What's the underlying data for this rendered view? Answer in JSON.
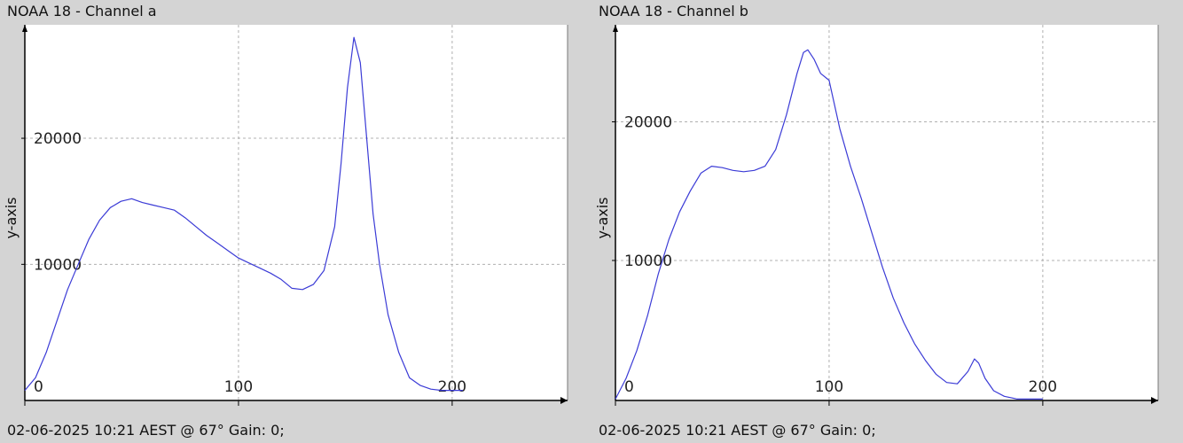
{
  "chart_data": [
    {
      "type": "line",
      "title": "NOAA 18 - Channel a",
      "ylabel": "y-axis",
      "xlabel": "",
      "caption": "02-06-2025 10:21 AEST @ 67° Gain: 0;",
      "xlim": [
        0,
        254
      ],
      "ylim": [
        -800,
        29000
      ],
      "grid": true,
      "x_ticks": [
        0,
        100,
        200
      ],
      "x_tick_labels": [
        "0",
        "100",
        "200"
      ],
      "y_ticks": [
        10000,
        20000
      ],
      "y_tick_labels": [
        "10000",
        "20000"
      ],
      "line_color": "#3b3bd6",
      "series": [
        {
          "x": [
            0,
            5,
            10,
            15,
            20,
            25,
            30,
            35,
            40,
            45,
            50,
            55,
            60,
            65,
            70,
            75,
            80,
            85,
            90,
            95,
            100,
            105,
            110,
            115,
            120,
            125,
            130,
            135,
            140,
            145,
            148,
            151,
            154,
            157,
            160,
            163,
            166,
            170,
            175,
            180,
            185,
            190,
            195,
            200,
            205
          ],
          "y": [
            0,
            1000,
            3000,
            5500,
            8000,
            10000,
            12000,
            13500,
            14500,
            15000,
            15200,
            14900,
            14700,
            14500,
            14300,
            13700,
            13000,
            12300,
            11700,
            11100,
            10500,
            10100,
            9700,
            9300,
            8800,
            8100,
            8000,
            8400,
            9500,
            13000,
            18000,
            24000,
            28000,
            26000,
            20000,
            14000,
            10000,
            6000,
            3000,
            1000,
            400,
            100,
            0,
            0,
            0
          ]
        }
      ]
    },
    {
      "type": "line",
      "title": "NOAA 18 - Channel b",
      "ylabel": "y-axis",
      "xlabel": "",
      "caption": "02-06-2025 10:21 AEST @ 67° Gain: 0;",
      "xlim": [
        0,
        254
      ],
      "ylim": [
        -100,
        27000
      ],
      "grid": true,
      "x_ticks": [
        0,
        100,
        200
      ],
      "x_tick_labels": [
        "0",
        "100",
        "200"
      ],
      "y_ticks": [
        10000,
        20000
      ],
      "y_tick_labels": [
        "10000",
        "20000"
      ],
      "line_color": "#3b3bd6",
      "series": [
        {
          "x": [
            0,
            5,
            10,
            15,
            20,
            25,
            30,
            35,
            40,
            45,
            50,
            55,
            60,
            65,
            70,
            75,
            80,
            85,
            88,
            90,
            93,
            96,
            100,
            105,
            110,
            115,
            120,
            125,
            130,
            135,
            140,
            145,
            150,
            155,
            160,
            165,
            168,
            170,
            173,
            177,
            182,
            188,
            195,
            200
          ],
          "y": [
            0,
            1500,
            3500,
            6000,
            9000,
            11500,
            13500,
            15000,
            16300,
            16800,
            16700,
            16500,
            16400,
            16500,
            16800,
            18000,
            20500,
            23500,
            25000,
            25200,
            24500,
            23500,
            23000,
            19500,
            16800,
            14500,
            12000,
            9500,
            7300,
            5500,
            4000,
            2800,
            1800,
            1200,
            1100,
            2000,
            2900,
            2600,
            1500,
            600,
            200,
            0,
            0,
            0
          ]
        }
      ]
    }
  ]
}
